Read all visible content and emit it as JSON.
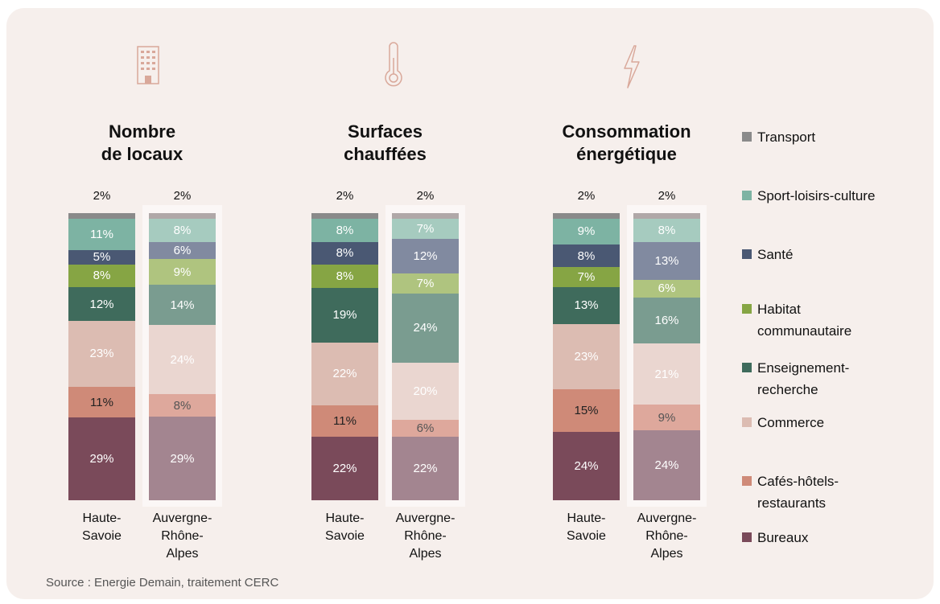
{
  "chart_data": [
    {
      "type": "bar",
      "stacked": true,
      "title": "Nombre de locaux",
      "categories": [
        "Haute-Savoie",
        "Auvergne-Rhône-Alpes"
      ],
      "series": [
        {
          "name": "Bureaux",
          "colors": [
            "#7a4a5a",
            "#a38590"
          ],
          "values": [
            29,
            29
          ],
          "value_labels": [
            "29%",
            "29%"
          ]
        },
        {
          "name": "Cafés-hôtels-restaurants",
          "colors": [
            "#cf8a78",
            "#dea89c"
          ],
          "values": [
            11,
            8
          ],
          "value_labels": [
            "11%",
            "8%"
          ]
        },
        {
          "name": "Commerce",
          "colors": [
            "#dcbcb2",
            "#ead6d0"
          ],
          "values": [
            23,
            24
          ],
          "value_labels": [
            "23%",
            "24%"
          ]
        },
        {
          "name": "Enseignement-recherche",
          "colors": [
            "#3f6b5c",
            "#7a9c90"
          ],
          "values": [
            12,
            14
          ],
          "value_labels": [
            "12%",
            "14%"
          ]
        },
        {
          "name": "Habitat communautaire",
          "colors": [
            "#86a544",
            "#afc47f"
          ],
          "values": [
            8,
            9
          ],
          "value_labels": [
            "8%",
            "9%"
          ]
        },
        {
          "name": "Santé",
          "colors": [
            "#4a5873",
            "#818aa0"
          ],
          "values": [
            5,
            6
          ],
          "value_labels": [
            "5%",
            "6%"
          ]
        },
        {
          "name": "Sport-loisirs-culture",
          "colors": [
            "#7db3a3",
            "#a6cbbf"
          ],
          "values": [
            11,
            8
          ],
          "value_labels": [
            "11%",
            "8%"
          ]
        },
        {
          "name": "Transport",
          "colors": [
            "#8a8a8a",
            "#b0a8a8"
          ],
          "values": [
            2,
            2
          ],
          "value_labels": [
            "2%",
            "2%"
          ]
        }
      ]
    },
    {
      "type": "bar",
      "stacked": true,
      "title": "Surfaces chauffées",
      "categories": [
        "Haute-Savoie",
        "Auvergne-Rhône-Alpes"
      ],
      "series": [
        {
          "name": "Bureaux",
          "colors": [
            "#7a4a5a",
            "#a38590"
          ],
          "values": [
            22,
            22
          ],
          "value_labels": [
            "22%",
            "22%"
          ]
        },
        {
          "name": "Cafés-hôtels-restaurants",
          "colors": [
            "#cf8a78",
            "#dea89c"
          ],
          "values": [
            11,
            6
          ],
          "value_labels": [
            "11%",
            "6%"
          ]
        },
        {
          "name": "Commerce",
          "colors": [
            "#dcbcb2",
            "#ead6d0"
          ],
          "values": [
            22,
            20
          ],
          "value_labels": [
            "22%",
            "20%"
          ]
        },
        {
          "name": "Enseignement-recherche",
          "colors": [
            "#3f6b5c",
            "#7a9c90"
          ],
          "values": [
            19,
            24
          ],
          "value_labels": [
            "19%",
            "24%"
          ]
        },
        {
          "name": "Habitat communautaire",
          "colors": [
            "#86a544",
            "#afc47f"
          ],
          "values": [
            8,
            7
          ],
          "value_labels": [
            "8%",
            "7%"
          ]
        },
        {
          "name": "Santé",
          "colors": [
            "#4a5873",
            "#818aa0"
          ],
          "values": [
            8,
            12
          ],
          "value_labels": [
            "8%",
            "12%"
          ]
        },
        {
          "name": "Sport-loisirs-culture",
          "colors": [
            "#7db3a3",
            "#a6cbbf"
          ],
          "values": [
            8,
            7
          ],
          "value_labels": [
            "8%",
            "7%"
          ]
        },
        {
          "name": "Transport",
          "colors": [
            "#8a8a8a",
            "#b0a8a8"
          ],
          "values": [
            2,
            2
          ],
          "value_labels": [
            "2%",
            "2%"
          ]
        }
      ]
    },
    {
      "type": "bar",
      "stacked": true,
      "title": "Consommation énergétique",
      "categories": [
        "Haute-Savoie",
        "Auvergne-Rhône-Alpes"
      ],
      "series": [
        {
          "name": "Bureaux",
          "colors": [
            "#7a4a5a",
            "#a38590"
          ],
          "values": [
            24,
            24
          ],
          "value_labels": [
            "24%",
            "24%"
          ]
        },
        {
          "name": "Cafés-hôtels-restaurants",
          "colors": [
            "#cf8a78",
            "#dea89c"
          ],
          "values": [
            15,
            9
          ],
          "value_labels": [
            "15%",
            "9%"
          ]
        },
        {
          "name": "Commerce",
          "colors": [
            "#dcbcb2",
            "#ead6d0"
          ],
          "values": [
            23,
            21
          ],
          "value_labels": [
            "23%",
            "21%"
          ]
        },
        {
          "name": "Enseignement-recherche",
          "colors": [
            "#3f6b5c",
            "#7a9c90"
          ],
          "values": [
            13,
            16
          ],
          "value_labels": [
            "13%",
            "16%"
          ]
        },
        {
          "name": "Habitat communautaire",
          "colors": [
            "#86a544",
            "#afc47f"
          ],
          "values": [
            7,
            6
          ],
          "value_labels": [
            "7%",
            "6%"
          ]
        },
        {
          "name": "Santé",
          "colors": [
            "#4a5873",
            "#818aa0"
          ],
          "values": [
            8,
            13
          ],
          "value_labels": [
            "8%",
            "13%"
          ]
        },
        {
          "name": "Sport-loisirs-culture",
          "colors": [
            "#7db3a3",
            "#a6cbbf"
          ],
          "values": [
            9,
            8
          ],
          "value_labels": [
            "9%",
            "8%"
          ]
        },
        {
          "name": "Transport",
          "colors": [
            "#8a8a8a",
            "#b0a8a8"
          ],
          "values": [
            2,
            2
          ],
          "value_labels": [
            "2%",
            "2%"
          ]
        }
      ]
    }
  ],
  "source": "Source : Energie Demain, traitement CERC"
}
